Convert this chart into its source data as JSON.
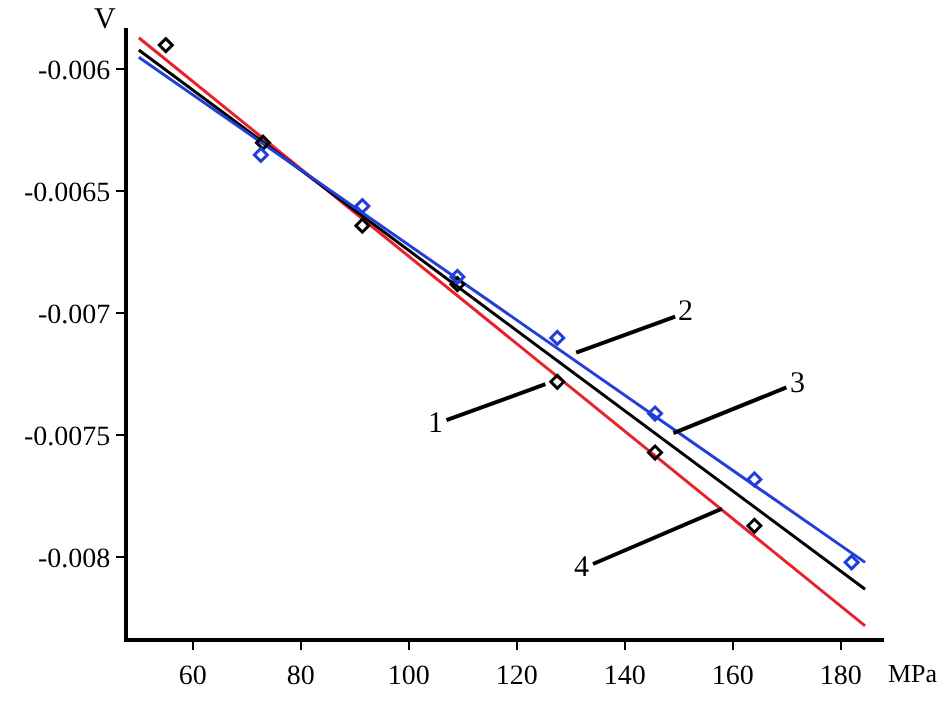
{
  "chart_data": {
    "type": "line",
    "xlabel": "MPa",
    "ylabel": "V",
    "xlim": [
      48,
      188
    ],
    "xticks": [
      60,
      80,
      100,
      120,
      140,
      160,
      180
    ],
    "ylim": [
      -0.00833,
      -0.00583
    ],
    "yticks": [
      -0.006,
      -0.0065,
      -0.007,
      -0.0075,
      -0.008
    ],
    "series": [
      {
        "color": "#e8202a",
        "x": [
          50,
          184.5
        ],
        "values": [
          -0.00587,
          -0.00828
        ]
      },
      {
        "color": "#000000",
        "x": [
          50,
          184.5
        ],
        "values": [
          -0.00592,
          -0.00813
        ]
      },
      {
        "color": "#1f3fd8",
        "x": [
          50,
          184.5
        ],
        "values": [
          -0.00595,
          -0.00802
        ]
      },
      {
        "type": "scatter",
        "marker": "diamond",
        "color": "#000000",
        "x": [
          55,
          73,
          91.4,
          109,
          127.5,
          145.6,
          164
        ],
        "values": [
          -0.0059,
          -0.0063,
          -0.00664,
          -0.00688,
          -0.00728,
          -0.00757,
          -0.00787
        ]
      },
      {
        "type": "scatter",
        "marker": "diamond",
        "color": "#1f3fd8",
        "x": [
          72.6,
          91.4,
          109,
          127.5,
          145.6,
          164,
          182
        ],
        "values": [
          -0.00635,
          -0.00656,
          -0.00685,
          -0.0071,
          -0.00741,
          -0.00768,
          -0.00802
        ]
      }
    ],
    "annotations": [
      {
        "text": "1",
        "x": 125.3,
        "y": -0.00729
      },
      {
        "text": "2",
        "x": 131,
        "y": -0.00716
      },
      {
        "text": "3",
        "x": 149,
        "y": -0.00749
      },
      {
        "text": "4",
        "x": 158,
        "y": -0.0078
      }
    ]
  }
}
